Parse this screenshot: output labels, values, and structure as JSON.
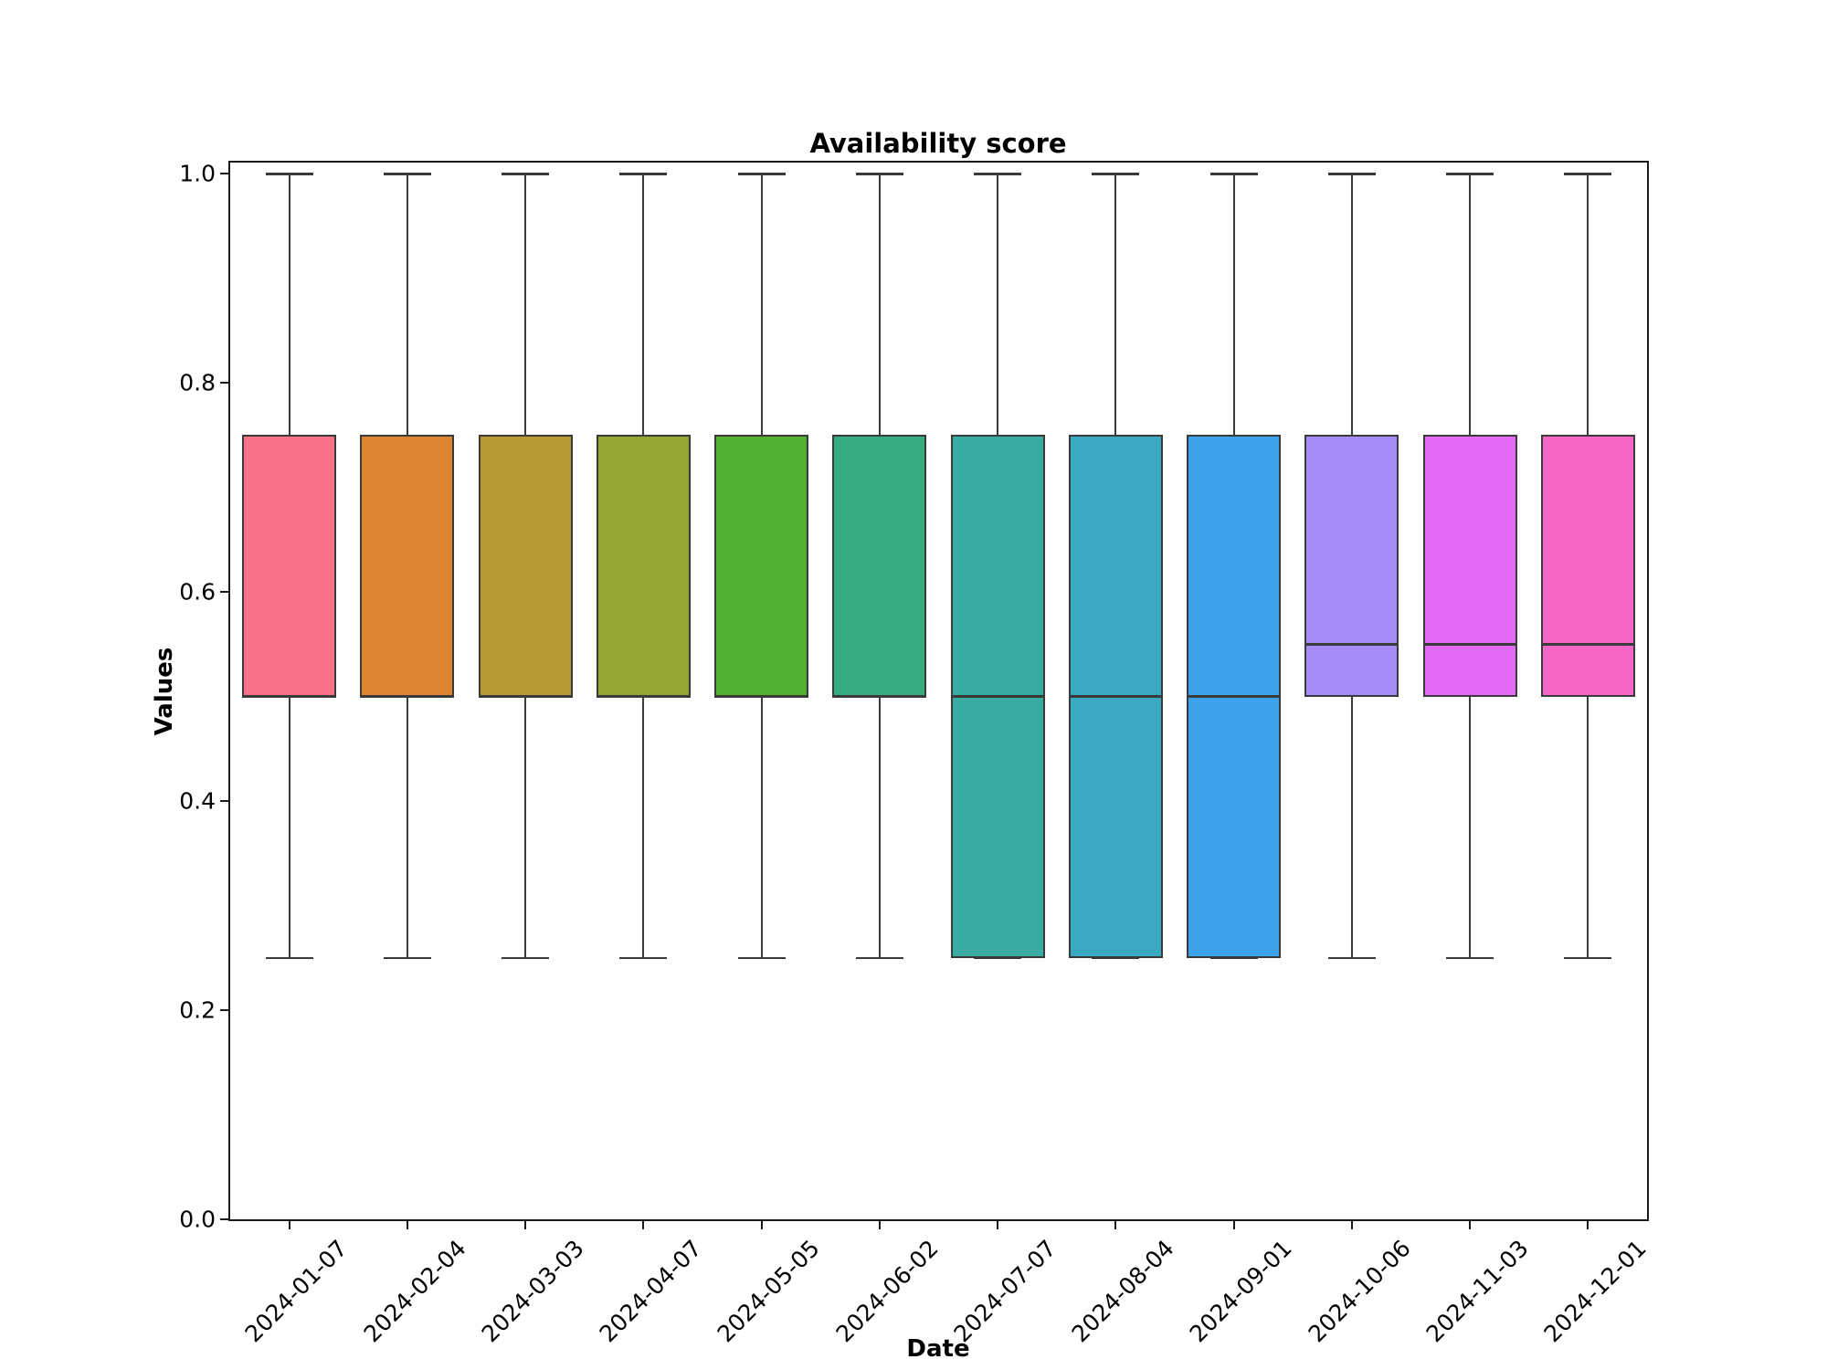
{
  "figure": {
    "background": "#ffffff"
  },
  "chart_data": {
    "type": "box",
    "title": "Availability score",
    "xlabel": "Date",
    "ylabel": "Values",
    "ylim": [
      0.0,
      1.01
    ],
    "yticks": [
      1.0,
      0.8,
      0.6,
      0.4,
      0.2,
      0.0
    ],
    "ytick_labels": [
      "1.0",
      "0.8",
      "0.6",
      "0.4",
      "0.2",
      "0.0"
    ],
    "grid": false,
    "legend": false,
    "box_edge_color": "#3a3a3a",
    "categories": [
      "2024-01-07",
      "2024-02-04",
      "2024-03-03",
      "2024-04-07",
      "2024-05-05",
      "2024-06-02",
      "2024-07-07",
      "2024-08-04",
      "2024-09-01",
      "2024-10-06",
      "2024-11-03",
      "2024-12-01"
    ],
    "boxes": [
      {
        "label": "2024-01-07",
        "whisker_low": 0.25,
        "q1": 0.5,
        "median": 0.5,
        "q3": 0.75,
        "whisker_high": 1.0,
        "color": "#f77189"
      },
      {
        "label": "2024-02-04",
        "whisker_low": 0.25,
        "q1": 0.5,
        "median": 0.5,
        "q3": 0.75,
        "whisker_high": 1.0,
        "color": "#de8530"
      },
      {
        "label": "2024-03-03",
        "whisker_low": 0.25,
        "q1": 0.5,
        "median": 0.5,
        "q3": 0.75,
        "whisker_high": 1.0,
        "color": "#b89a32"
      },
      {
        "label": "2024-04-07",
        "whisker_low": 0.25,
        "q1": 0.5,
        "median": 0.5,
        "q3": 0.75,
        "whisker_high": 1.0,
        "color": "#97a431"
      },
      {
        "label": "2024-05-05",
        "whisker_low": 0.25,
        "q1": 0.5,
        "median": 0.5,
        "q3": 0.75,
        "whisker_high": 1.0,
        "color": "#4fb031"
      },
      {
        "label": "2024-06-02",
        "whisker_low": 0.25,
        "q1": 0.5,
        "median": 0.5,
        "q3": 0.75,
        "whisker_high": 1.0,
        "color": "#35ad7e"
      },
      {
        "label": "2024-07-07",
        "whisker_low": 0.25,
        "q1": 0.25,
        "median": 0.5,
        "q3": 0.75,
        "whisker_high": 1.0,
        "color": "#38aba3"
      },
      {
        "label": "2024-08-04",
        "whisker_low": 0.25,
        "q1": 0.25,
        "median": 0.5,
        "q3": 0.75,
        "whisker_high": 1.0,
        "color": "#3aa9c2"
      },
      {
        "label": "2024-09-01",
        "whisker_low": 0.25,
        "q1": 0.25,
        "median": 0.5,
        "q3": 0.75,
        "whisker_high": 1.0,
        "color": "#3ba3ec"
      },
      {
        "label": "2024-10-06",
        "whisker_low": 0.25,
        "q1": 0.5,
        "median": 0.55,
        "q3": 0.75,
        "whisker_high": 1.0,
        "color": "#a48cf4"
      },
      {
        "label": "2024-11-03",
        "whisker_low": 0.25,
        "q1": 0.5,
        "median": 0.55,
        "q3": 0.75,
        "whisker_high": 1.0,
        "color": "#e269f4"
      },
      {
        "label": "2024-12-01",
        "whisker_low": 0.25,
        "q1": 0.5,
        "median": 0.55,
        "q3": 0.75,
        "whisker_high": 1.0,
        "color": "#f566c6"
      }
    ]
  }
}
